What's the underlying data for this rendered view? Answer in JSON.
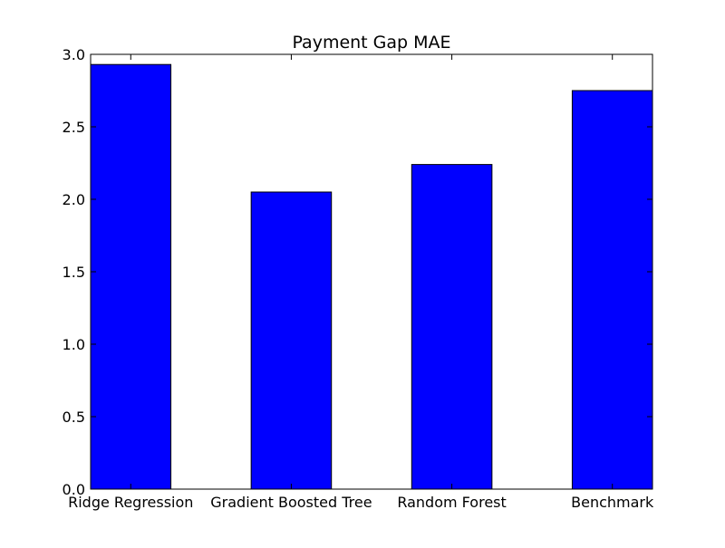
{
  "chart_data": {
    "type": "bar",
    "title": "Payment Gap MAE",
    "xlabel": "",
    "ylabel": "",
    "categories": [
      "Ridge Regression",
      "Gradient Boosted Tree",
      "Random Forest",
      "Benchmark"
    ],
    "values": [
      2.93,
      2.05,
      2.24,
      2.75
    ],
    "ylim": [
      0,
      3.0
    ],
    "yticks": [
      "0.0",
      "0.5",
      "1.0",
      "1.5",
      "2.0",
      "2.5",
      "3.0"
    ],
    "grid": false,
    "legend": "none",
    "bar_color": "#0000ff",
    "edge_color": "#000000"
  }
}
